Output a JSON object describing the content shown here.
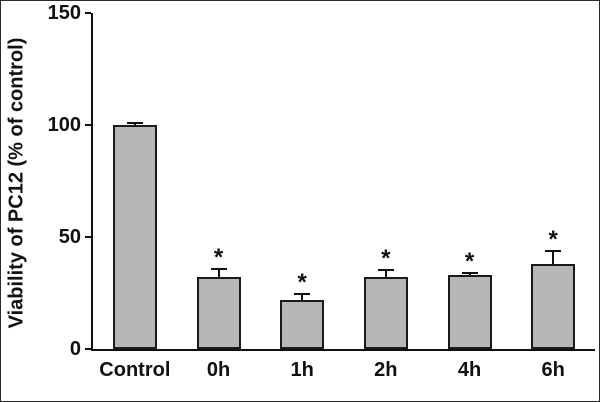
{
  "chart_data": {
    "type": "bar",
    "title": "",
    "categories": [
      "Control",
      "0h",
      "1h",
      "2h",
      "4h",
      "6h"
    ],
    "values": [
      100,
      32,
      22,
      32,
      33,
      38
    ],
    "errors": [
      1.5,
      4,
      3,
      3.5,
      1.5,
      6
    ],
    "annotations": [
      "",
      "*",
      "*",
      "*",
      "*",
      "*"
    ],
    "xlabel": "",
    "ylabel": "Viability of PC12 (% of control)",
    "ylim": [
      0,
      150
    ],
    "yticks": [
      0,
      50,
      100,
      150
    ],
    "grid": false,
    "legend": "none",
    "bar_fill_color": "#b7b7b7",
    "bar_border_color": "#1a1a1a",
    "axis_color": "#111111"
  }
}
